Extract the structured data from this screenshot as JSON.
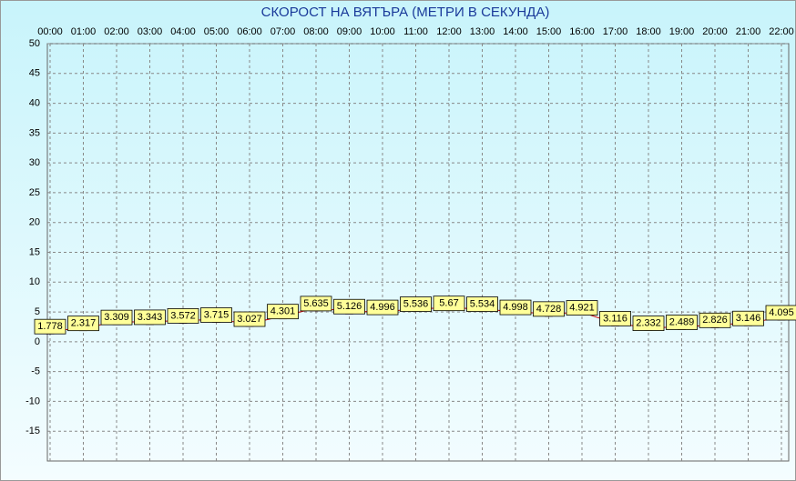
{
  "chart_data": {
    "type": "line",
    "title": "СКОРОСТ НА ВЯТЪРА (МЕТРИ В СЕКУНДА)",
    "categories": [
      "00:00",
      "01:00",
      "02:00",
      "03:00",
      "04:00",
      "05:00",
      "06:00",
      "07:00",
      "08:00",
      "09:00",
      "10:00",
      "11:00",
      "12:00",
      "13:00",
      "14:00",
      "15:00",
      "16:00",
      "17:00",
      "18:00",
      "19:00",
      "20:00",
      "21:00",
      "22:00"
    ],
    "series": [
      {
        "color": "#cc0000",
        "values": [
          1.778,
          2.317,
          3.309,
          3.343,
          3.572,
          3.715,
          3.027,
          4.301,
          5.635,
          5.126,
          4.996,
          5.536,
          5.67,
          5.534,
          4.998,
          4.728,
          4.921,
          3.116,
          2.332,
          2.489,
          2.826,
          3.146,
          4.095
        ]
      }
    ],
    "ylim": [
      -20,
      50
    ],
    "yticks": [
      -15,
      -10,
      -5,
      0,
      5,
      10,
      15,
      20,
      25,
      30,
      35,
      40,
      45,
      50
    ],
    "grid": true
  }
}
